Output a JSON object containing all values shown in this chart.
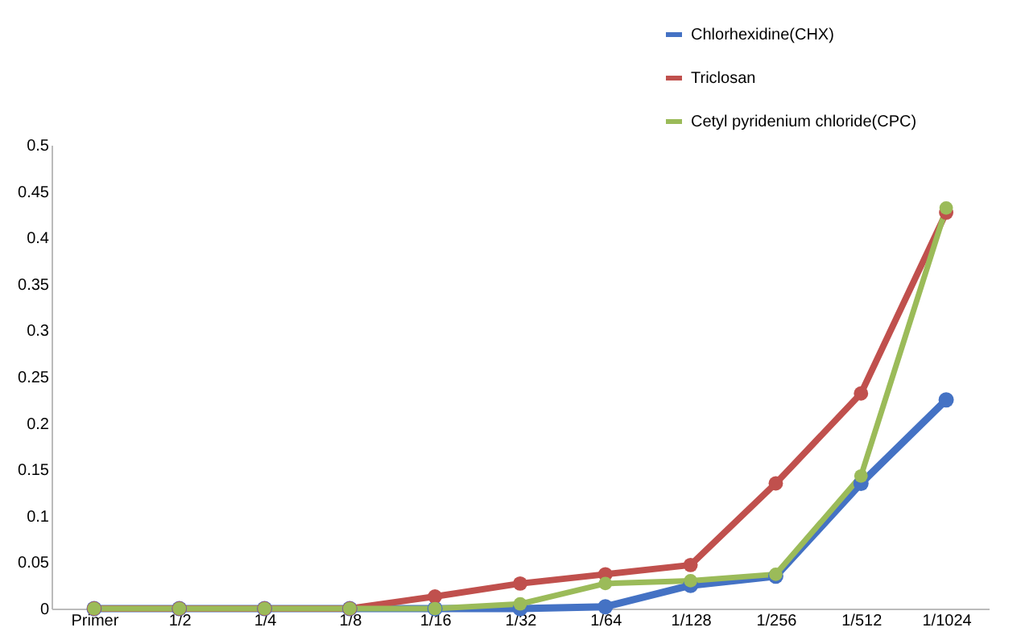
{
  "chart_data": {
    "type": "line",
    "categories": [
      "Primer",
      "1/2",
      "1/4",
      "1/8",
      "1/16",
      "1/32",
      "1/64",
      "1/128",
      "1/256",
      "1/512",
      "1/1024"
    ],
    "series": [
      {
        "name": "Chlorhexidine(CHX)",
        "color": "#4472c4",
        "values": [
          0,
          0,
          0,
          0,
          0,
          0,
          0.002,
          0.025,
          0.035,
          0.135,
          0.225
        ]
      },
      {
        "name": "Triclosan",
        "color": "#c0504d",
        "values": [
          0,
          0,
          0,
          0,
          0.013,
          0.027,
          0.037,
          0.047,
          0.135,
          0.232,
          0.427
        ]
      },
      {
        "name": "Cetyl pyridenium chloride(CPC)",
        "color": "#9bbb59",
        "values": [
          0,
          0,
          0,
          0,
          0,
          0.005,
          0.027,
          0.03,
          0.037,
          0.143,
          0.432
        ]
      }
    ],
    "ylim": [
      0,
      0.5
    ],
    "yticks": [
      0,
      0.05,
      0.1,
      0.15,
      0.2,
      0.25,
      0.3,
      0.35,
      0.4,
      0.45,
      0.5
    ],
    "grid": false,
    "legend": "top right",
    "marker": "circle",
    "line_style": "solid"
  }
}
